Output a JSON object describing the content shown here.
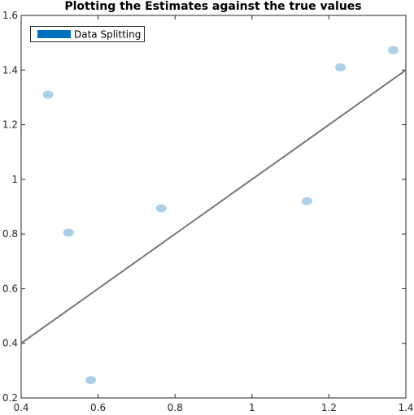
{
  "chart_data": {
    "type": "scatter",
    "title": "Plotting the Estimates against the true values",
    "xlabel": "",
    "ylabel": "",
    "xlim": [
      0.4,
      1.4
    ],
    "ylim": [
      0.2,
      1.6
    ],
    "xticks": [
      "0.4",
      "0.6",
      "0.8",
      "1",
      "1.2",
      "1.4"
    ],
    "yticks": [
      "0.2",
      "0.4",
      "0.6",
      "0.8",
      "1",
      "1.2",
      "1.4",
      "1.6"
    ],
    "xtick_values": [
      0.4,
      0.6,
      0.8,
      1.0,
      1.2,
      1.4
    ],
    "ytick_values": [
      0.2,
      0.4,
      0.6,
      0.8,
      1.0,
      1.2,
      1.4,
      1.6
    ],
    "legend": {
      "placement": "top-left",
      "entries": [
        "Data Splitting"
      ]
    },
    "series": [
      {
        "name": "Data Splitting",
        "color": "#0072BD",
        "marker_color": "#AECFE8",
        "x": [
          0.47,
          0.523,
          0.581,
          0.764,
          1.143,
          1.23,
          1.367
        ],
        "y": [
          1.31,
          0.805,
          0.265,
          0.894,
          0.92,
          1.41,
          1.473
        ]
      }
    ],
    "reference_line": {
      "name": "identity",
      "x": [
        0.4,
        1.4
      ],
      "y": [
        0.4,
        1.4
      ],
      "color": "#777777"
    }
  }
}
